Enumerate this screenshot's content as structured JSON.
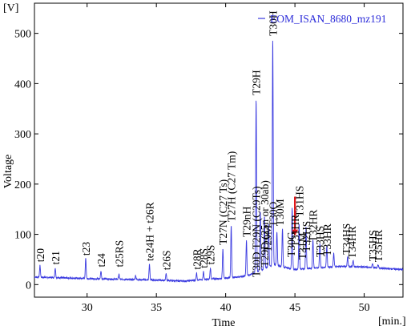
{
  "colors": {
    "series": "#3a3ae0",
    "marker": "#e0161b",
    "axis": "#000000"
  },
  "chart_data": {
    "type": "line",
    "ylabel": "Voltage",
    "xlabel": "Time",
    "y_unit": "[V]",
    "x_unit": "[min.]",
    "xlim": [
      26.2,
      52.8
    ],
    "ylim": [
      -25,
      560
    ],
    "x_ticks": [
      25,
      30,
      35,
      40,
      45,
      50
    ],
    "y_ticks": [
      0,
      100,
      200,
      300,
      400,
      500
    ],
    "legend": {
      "position": "top-right",
      "entries": [
        "EOM_ISAN_8680_mz191"
      ]
    },
    "grid": false,
    "series": [
      {
        "name": "EOM_ISAN_8680_mz191",
        "baseline": [
          [
            26.2,
            15
          ],
          [
            30,
            12
          ],
          [
            35,
            9
          ],
          [
            37,
            7
          ],
          [
            38.5,
            10
          ],
          [
            40,
            13
          ],
          [
            41.5,
            17
          ],
          [
            42.5,
            28
          ],
          [
            43.5,
            40
          ],
          [
            44,
            36
          ],
          [
            45,
            30
          ],
          [
            46,
            32
          ],
          [
            47,
            34
          ],
          [
            48,
            36
          ],
          [
            49,
            36
          ],
          [
            50,
            35
          ],
          [
            51,
            33
          ],
          [
            52.8,
            30
          ]
        ],
        "peaks": [
          {
            "x": 26.6,
            "y": 38
          },
          {
            "x": 27.7,
            "y": 33
          },
          {
            "x": 29.9,
            "y": 52
          },
          {
            "x": 31.0,
            "y": 27
          },
          {
            "x": 32.3,
            "y": 20
          },
          {
            "x": 33.5,
            "y": 18
          },
          {
            "x": 34.5,
            "y": 40
          },
          {
            "x": 35.7,
            "y": 22
          },
          {
            "x": 37.9,
            "y": 23
          },
          {
            "x": 38.4,
            "y": 26
          },
          {
            "x": 38.9,
            "y": 33
          },
          {
            "x": 39.8,
            "y": 72
          },
          {
            "x": 40.4,
            "y": 118
          },
          {
            "x": 41.5,
            "y": 88
          },
          {
            "x": 42.2,
            "y": 370
          },
          {
            "x": 42.5,
            "y": 145
          },
          {
            "x": 42.8,
            "y": 135
          },
          {
            "x": 43.1,
            "y": 120
          },
          {
            "x": 43.4,
            "y": 488
          },
          {
            "x": 43.7,
            "y": 105
          },
          {
            "x": 44.1,
            "y": 112
          },
          {
            "x": 44.8,
            "y": 152
          },
          {
            "x": 45.3,
            "y": 120
          },
          {
            "x": 45.8,
            "y": 115
          },
          {
            "x": 46.3,
            "y": 90
          },
          {
            "x": 46.8,
            "y": 82
          },
          {
            "x": 47.3,
            "y": 78
          },
          {
            "x": 47.8,
            "y": 62
          },
          {
            "x": 48.8,
            "y": 55
          },
          {
            "x": 49.2,
            "y": 48
          },
          {
            "x": 50.6,
            "y": 42
          },
          {
            "x": 51.0,
            "y": 40
          }
        ]
      }
    ],
    "marker": {
      "x": 45.0,
      "y_top": 175,
      "y_bottom": 100
    },
    "peak_labels": [
      {
        "text": "t20",
        "x": 26.6,
        "y": 40
      },
      {
        "text": "t21",
        "x": 27.7,
        "y": 35
      },
      {
        "text": "t23",
        "x": 29.9,
        "y": 53
      },
      {
        "text": "t24",
        "x": 31.0,
        "y": 30
      },
      {
        "text": "t25RS",
        "x": 32.3,
        "y": 30
      },
      {
        "text": "te24H + t26R",
        "x": 34.5,
        "y": 42
      },
      {
        "text": "t26S",
        "x": 35.7,
        "y": 24
      },
      {
        "text": "t28R",
        "x": 37.9,
        "y": 25
      },
      {
        "text": "t28S",
        "x": 38.4,
        "y": 28
      },
      {
        "text": "t29S",
        "x": 38.9,
        "y": 35
      },
      {
        "text": "T27N (C27 Ts)",
        "x": 39.8,
        "y": 74
      },
      {
        "text": "T27H (C27 Tm)",
        "x": 40.4,
        "y": 120
      },
      {
        "text": "T29nH",
        "x": 41.5,
        "y": 90
      },
      {
        "text": "T30D T29N (C29Ts)",
        "x": 42.2,
        "y": 10
      },
      {
        "text": "T29H",
        "x": 42.2,
        "y": 372
      },
      {
        "text": "T29D (25n or 30ab)",
        "x": 42.8,
        "y": 30
      },
      {
        "text": "T29M",
        "x": 43.0,
        "y": 60
      },
      {
        "text": "T30O",
        "x": 43.4,
        "y": 110
      },
      {
        "text": "T30H",
        "x": 43.4,
        "y": 490
      },
      {
        "text": "T30M",
        "x": 43.9,
        "y": 112
      },
      {
        "text": "T30G",
        "x": 44.7,
        "y": 50
      },
      {
        "text": "T31HR",
        "x": 45.0,
        "y": 70
      },
      {
        "text": "T31HS",
        "x": 45.3,
        "y": 130
      },
      {
        "text": "T31M",
        "x": 45.5,
        "y": 45
      },
      {
        "text": "T32HS",
        "x": 45.8,
        "y": 60
      },
      {
        "text": "T32HR",
        "x": 46.3,
        "y": 80
      },
      {
        "text": "T33HS",
        "x": 46.8,
        "y": 50
      },
      {
        "text": "T33HR",
        "x": 47.3,
        "y": 52
      },
      {
        "text": "T34HS",
        "x": 48.7,
        "y": 55
      },
      {
        "text": "T34HR",
        "x": 49.1,
        "y": 47
      },
      {
        "text": "T35HS",
        "x": 50.6,
        "y": 42
      },
      {
        "text": "T35HR",
        "x": 51.0,
        "y": 40
      }
    ]
  }
}
